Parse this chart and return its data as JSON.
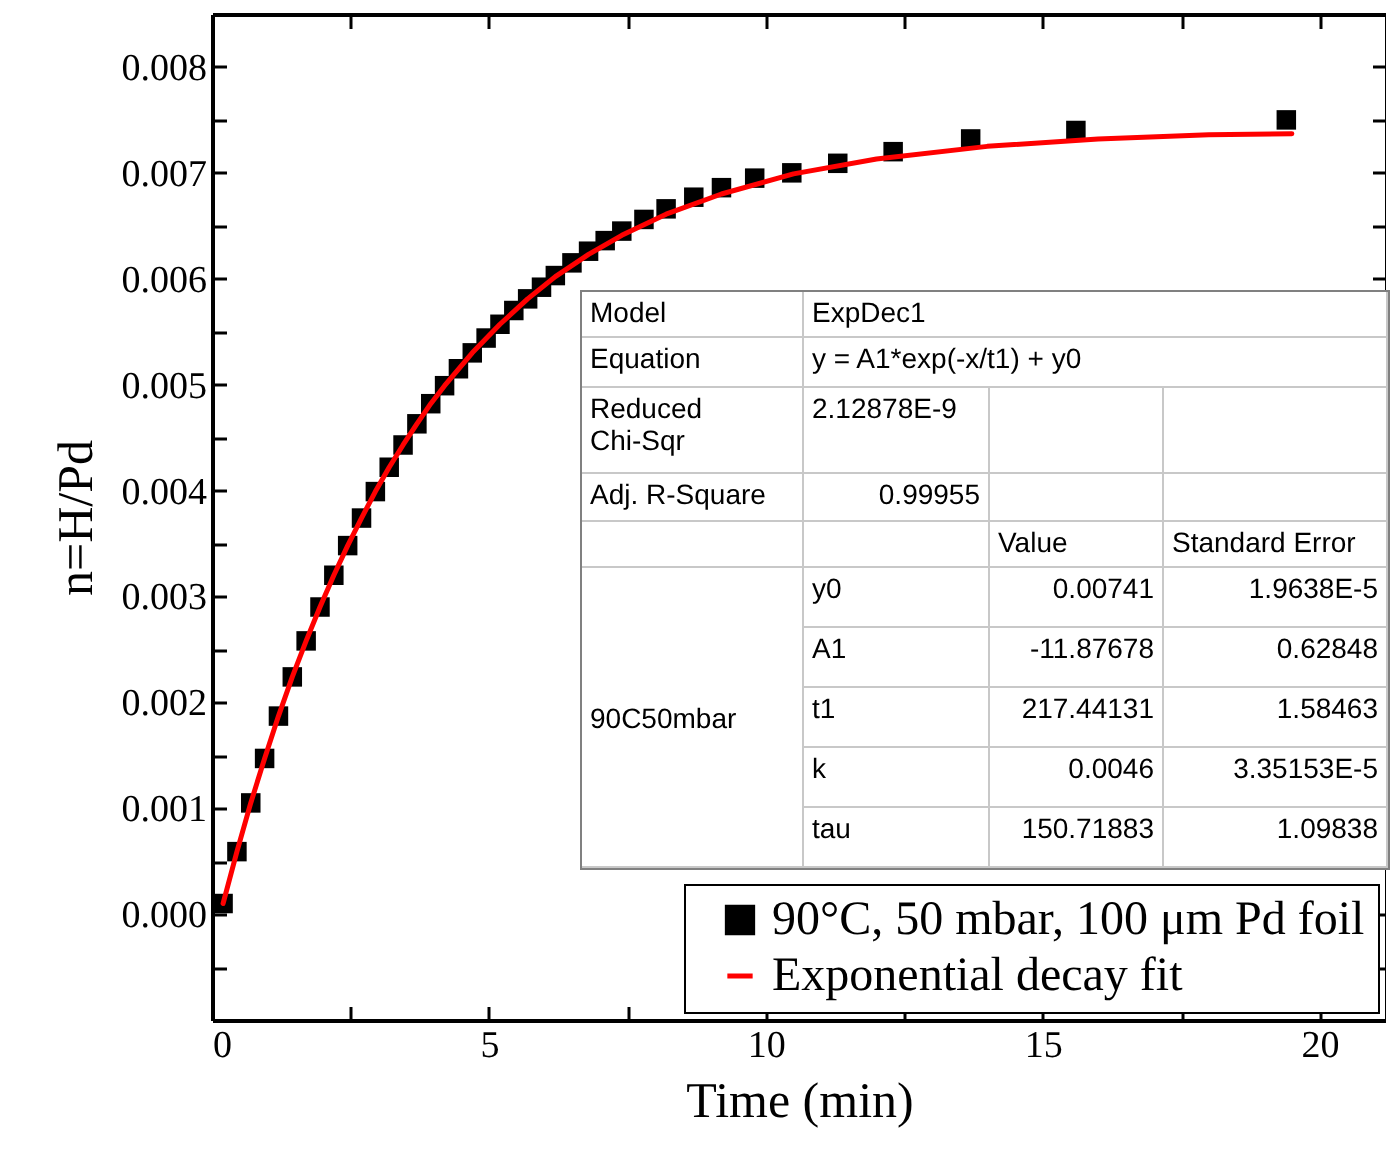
{
  "chart_data": {
    "type": "scatter",
    "xlabel": "Time (min)",
    "ylabel": "n=H/Pd",
    "xlim": [
      0,
      21.2
    ],
    "ylim": [
      -0.001,
      0.0085
    ],
    "xticks": [
      0,
      {
        "value": 2.5,
        "label": null
      },
      5,
      {
        "value": 7.5,
        "label": null
      },
      10,
      {
        "value": 12.5,
        "label": null
      },
      15,
      {
        "value": 17.5,
        "label": null
      },
      20
    ],
    "yticks": [
      {
        "value": -0.0005,
        "label": null
      },
      {
        "value": 0,
        "label": "0.000"
      },
      {
        "value": 0.0005,
        "label": null
      },
      {
        "value": 0.001,
        "label": "0.001"
      },
      {
        "value": 0.0015,
        "label": null
      },
      {
        "value": 0.002,
        "label": "0.002"
      },
      {
        "value": 0.0025,
        "label": null
      },
      {
        "value": 0.003,
        "label": "0.003"
      },
      {
        "value": 0.0035,
        "label": null
      },
      {
        "value": 0.004,
        "label": "0.004"
      },
      {
        "value": 0.0045,
        "label": null
      },
      {
        "value": 0.005,
        "label": "0.005"
      },
      {
        "value": 0.0055,
        "label": null
      },
      {
        "value": 0.006,
        "label": "0.006"
      },
      {
        "value": 0.0065,
        "label": null
      },
      {
        "value": 0.007,
        "label": "0.007"
      },
      {
        "value": 0.0075,
        "label": null
      },
      {
        "value": 0.008,
        "label": "0.008"
      }
    ],
    "legend": "bottom right",
    "series": [
      {
        "name": "90°C, 50 mbar, 100 μm Pd foil",
        "type": "scatter",
        "marker": "square",
        "color": "#000000",
        "x": [
          0.2,
          0.45,
          0.7,
          0.95,
          1.2,
          1.45,
          1.7,
          1.95,
          2.2,
          2.45,
          2.7,
          2.95,
          3.2,
          3.45,
          3.7,
          3.95,
          4.2,
          4.45,
          4.7,
          4.95,
          5.2,
          5.45,
          5.7,
          5.95,
          6.2,
          6.5,
          6.8,
          7.1,
          7.4,
          7.8,
          8.2,
          8.7,
          9.2,
          9.8,
          10.47,
          11.3,
          12.3,
          13.7,
          15.6,
          19.4
        ],
        "values": [
          0.0001,
          0.00059,
          0.00105,
          0.00147,
          0.00187,
          0.00224,
          0.00258,
          0.0029,
          0.0032,
          0.00348,
          0.00374,
          0.00399,
          0.00422,
          0.00443,
          0.00463,
          0.00482,
          0.00499,
          0.00515,
          0.0053,
          0.00544,
          0.00557,
          0.0057,
          0.00581,
          0.00592,
          0.00603,
          0.00615,
          0.00626,
          0.00636,
          0.00645,
          0.00656,
          0.00666,
          0.00677,
          0.00686,
          0.00695,
          0.007,
          0.00709,
          0.0072,
          0.00732,
          0.0074,
          0.0075
        ]
      },
      {
        "name": "Exponential decay fit",
        "type": "line",
        "color": "#ff0000",
        "x": [
          0.2,
          0.45,
          0.7,
          0.95,
          1.2,
          1.45,
          1.7,
          1.95,
          2.2,
          2.45,
          2.7,
          2.95,
          3.2,
          3.45,
          3.7,
          3.95,
          4.2,
          4.7,
          5.2,
          5.7,
          6.2,
          6.8,
          7.4,
          8.2,
          9.2,
          10.5,
          12,
          14,
          16,
          18,
          19.5
        ],
        "values": [
          0.0001,
          0.00059,
          0.00105,
          0.00147,
          0.00187,
          0.00224,
          0.00258,
          0.0029,
          0.0032,
          0.00348,
          0.00374,
          0.00399,
          0.00422,
          0.00443,
          0.00463,
          0.00482,
          0.00499,
          0.0053,
          0.00557,
          0.00581,
          0.00602,
          0.00623,
          0.00641,
          0.00661,
          0.0068,
          0.00699,
          0.00713,
          0.00725,
          0.00732,
          0.00736,
          0.00737
        ]
      }
    ],
    "annotations": [
      "Model",
      "ExpDec1",
      "Equation",
      "y = A1*exp(-x/t1) + y0",
      "Reduced Chi-Sqr",
      "2.12878E-9",
      "Adj. R-Square",
      "0.99955",
      "Value",
      "Standard Error",
      "90C50mbar",
      "y0",
      "0.00741",
      "1.9638E-5",
      "A1",
      "-11.87678",
      "0.62848",
      "t1",
      "217.44131",
      "1.58463",
      "k",
      "0.0046",
      "3.35153E-5",
      "tau",
      "150.71883",
      "1.09838"
    ]
  }
}
